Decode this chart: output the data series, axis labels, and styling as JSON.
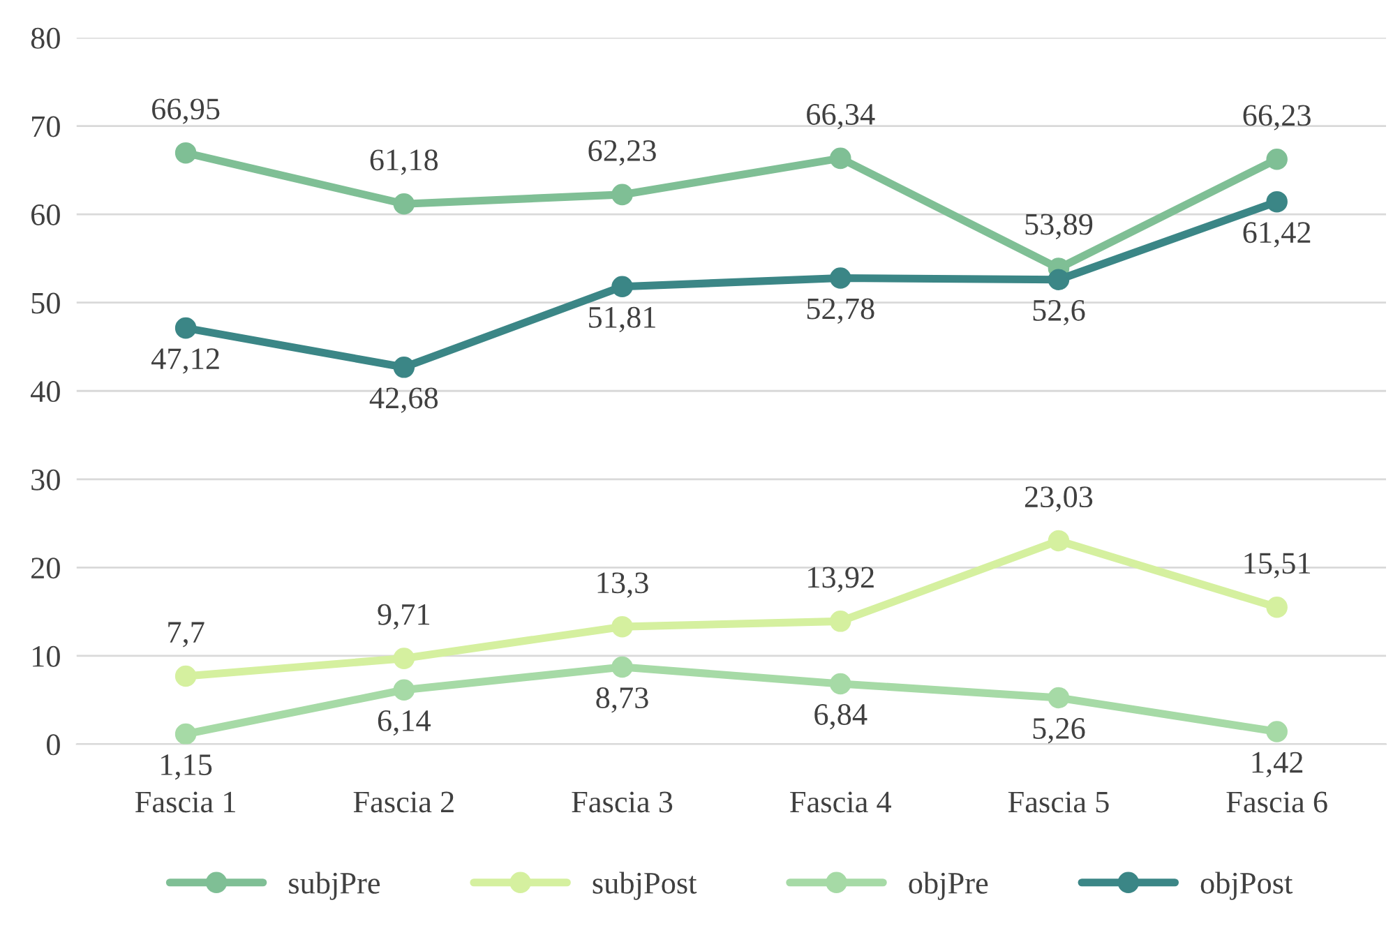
{
  "chart_data": {
    "type": "line",
    "categories": [
      "Fascia 1",
      "Fascia 2",
      "Fascia 3",
      "Fascia 4",
      "Fascia 5",
      "Fascia 6"
    ],
    "series": [
      {
        "name": "subjPre",
        "color": "#7fbf95",
        "values": [
          66.95,
          61.18,
          62.23,
          66.34,
          53.89,
          66.23
        ],
        "value_labels": [
          "66,95",
          "61,18",
          "62,23",
          "66,34",
          "53,89",
          "66,23"
        ]
      },
      {
        "name": "subjPost",
        "color": "#d5f09f",
        "values": [
          7.7,
          9.71,
          13.3,
          13.92,
          23.03,
          15.51
        ],
        "value_labels": [
          "7,7",
          "9,71",
          "13,3",
          "13,92",
          "23,03",
          "15,51"
        ]
      },
      {
        "name": "objPre",
        "color": "#a6daa6",
        "values": [
          1.15,
          6.14,
          8.73,
          6.84,
          5.26,
          1.42
        ],
        "value_labels": [
          "1,15",
          "6,14",
          "8,73",
          "6,84",
          "5,26",
          "1,42"
        ]
      },
      {
        "name": "objPost",
        "color": "#3b8686",
        "values": [
          47.12,
          42.68,
          51.81,
          52.78,
          52.6,
          61.42
        ],
        "value_labels": [
          "47,12",
          "42,68",
          "51,81",
          "52,78",
          "52,6",
          "61,42"
        ]
      }
    ],
    "ylim": [
      0,
      80
    ],
    "yticks": [
      0,
      10,
      20,
      30,
      40,
      50,
      60,
      70,
      80
    ],
    "grid": "y",
    "legend": "bottom",
    "marker": "circle",
    "line_style": "solid"
  }
}
